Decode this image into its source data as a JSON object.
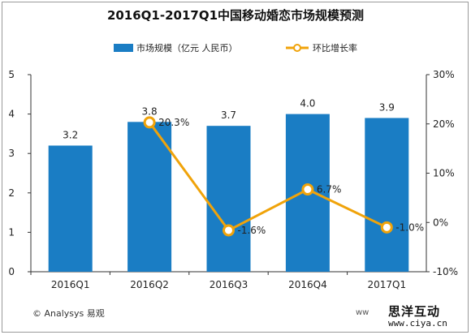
{
  "chart_data": {
    "type": "bar",
    "title": "2016Q1-2017Q1中国移动婚恋市场规模预测",
    "categories": [
      "2016Q1",
      "2016Q2",
      "2016Q3",
      "2016Q4",
      "2017Q1"
    ],
    "series": [
      {
        "name": "市场规模（亿元 人民币）",
        "type": "bar",
        "axis": "left",
        "values": [
          3.2,
          3.8,
          3.7,
          4.0,
          3.9
        ],
        "labels": [
          "3.2",
          "3.8",
          "3.7",
          "4.0",
          "3.9"
        ],
        "color": "#1a7dc4"
      },
      {
        "name": "环比增长率",
        "type": "line",
        "axis": "right",
        "values": [
          null,
          20.3,
          -1.6,
          6.7,
          -1.0
        ],
        "labels": [
          "",
          "20.3%",
          "-1.6%",
          "6.7%",
          "-1.0%"
        ],
        "color": "#f0a30a"
      }
    ],
    "y_left": {
      "lim": [
        0,
        5
      ],
      "ticks": [
        "0",
        "1",
        "2",
        "3",
        "4",
        "5"
      ]
    },
    "y_right": {
      "lim": [
        -10,
        30
      ],
      "ticks": [
        "-10%",
        "0%",
        "10%",
        "20%",
        "30%"
      ]
    },
    "grid": false,
    "legend": "top-center"
  },
  "footer": {
    "source": "© Analysys 易观",
    "watermark_text": "ww",
    "brand_name": "思洋互动",
    "brand_url": "www.ciya.cn"
  }
}
